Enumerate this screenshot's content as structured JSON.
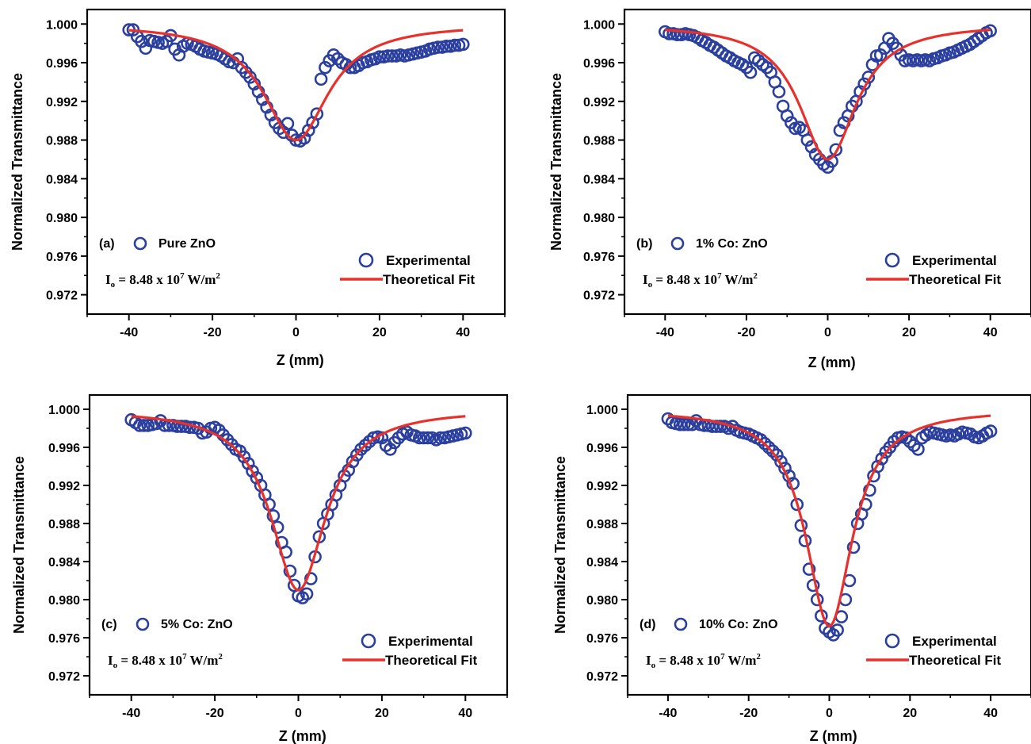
{
  "chart_data": [
    {
      "type": "scatter",
      "panel_label": "(a)",
      "sample_label": "Pure ZnO",
      "intensity": {
        "prefix": "I",
        "sub": "o",
        "main": " = 8.48 x 10",
        "exp": "7",
        "unit": " W/m",
        "unit_exp": "2"
      },
      "xlabel": "Z (mm)",
      "ylabel": "Normalized Transmittance",
      "xlim": [
        -50,
        50
      ],
      "ylim": [
        0.97,
        1.0015
      ],
      "xticks": [
        "-40",
        "-20",
        "0",
        "20",
        "40"
      ],
      "yticks": [
        "0.972",
        "0.976",
        "0.980",
        "0.984",
        "0.988",
        "0.992",
        "0.996",
        "1.000"
      ],
      "legend": {
        "position": "bottom-right",
        "experimental": "Experimental",
        "theoretical": "Theoretical Fit"
      },
      "series": [
        {
          "name": "Experimental",
          "color": "#2b3f9e",
          "x": [
            -40,
            -39,
            -38,
            -37,
            -36,
            -35,
            -34,
            -33,
            -32,
            -31,
            -30,
            -29,
            -28,
            -27,
            -26,
            -25,
            -24,
            -23,
            -22,
            -21,
            -20,
            -19,
            -18,
            -17,
            -16,
            -15,
            -14,
            -13,
            -12,
            -11,
            -10,
            -9,
            -8,
            -7,
            -6,
            -5,
            -4,
            -3,
            -2,
            -1,
            0,
            1,
            2,
            3,
            4,
            5,
            6,
            7,
            8,
            9,
            10,
            11,
            12,
            13,
            14,
            15,
            16,
            17,
            18,
            19,
            20,
            21,
            22,
            23,
            24,
            25,
            26,
            27,
            28,
            29,
            30,
            31,
            32,
            33,
            34,
            35,
            36,
            37,
            38,
            39,
            40
          ],
          "y": [
            0.9994,
            0.9994,
            0.9987,
            0.9982,
            0.9975,
            0.9983,
            0.9982,
            0.9981,
            0.998,
            0.9982,
            0.9988,
            0.9974,
            0.9968,
            0.9977,
            0.998,
            0.9979,
            0.9977,
            0.9974,
            0.9972,
            0.9971,
            0.997,
            0.9969,
            0.9967,
            0.9964,
            0.9961,
            0.996,
            0.9964,
            0.9955,
            0.995,
            0.9945,
            0.9938,
            0.993,
            0.9922,
            0.9914,
            0.9906,
            0.9898,
            0.9892,
            0.9888,
            0.9897,
            0.9885,
            0.988,
            0.9879,
            0.9882,
            0.989,
            0.9898,
            0.9907,
            0.9943,
            0.9955,
            0.9962,
            0.9968,
            0.9964,
            0.996,
            0.9958,
            0.9955,
            0.9955,
            0.9957,
            0.996,
            0.9961,
            0.9963,
            0.9964,
            0.9966,
            0.9966,
            0.9967,
            0.9967,
            0.9967,
            0.9968,
            0.9967,
            0.9968,
            0.9969,
            0.997,
            0.9971,
            0.9972,
            0.9974,
            0.9975,
            0.9976,
            0.9976,
            0.9977,
            0.9977,
            0.9978,
            0.9978,
            0.9979
          ]
        },
        {
          "name": "Theoretical Fit",
          "color": "#e8312b",
          "z0": 9.5,
          "depth": 0.012,
          "xmin": -40,
          "xmax": 40
        }
      ]
    },
    {
      "type": "scatter",
      "panel_label": "(b)",
      "sample_label": "1% Co: ZnO",
      "intensity": {
        "prefix": "I",
        "sub": "o",
        "main": " = 8.48 x 10",
        "exp": "7",
        "unit": " W/m",
        "unit_exp": "2"
      },
      "xlabel": "Z (mm)",
      "ylabel": "Normalized Transmittance",
      "xlim": [
        -50,
        50
      ],
      "ylim": [
        0.97,
        1.0015
      ],
      "xticks": [
        "-40",
        "-20",
        "0",
        "20",
        "40"
      ],
      "yticks": [
        "0.972",
        "0.976",
        "0.980",
        "0.984",
        "0.988",
        "0.992",
        "0.996",
        "1.000"
      ],
      "legend": {
        "position": "bottom-right",
        "experimental": "Experimental",
        "theoretical": "Theoretical Fit"
      },
      "series": [
        {
          "name": "Experimental",
          "color": "#2b3f9e",
          "x": [
            -40,
            -39,
            -38,
            -37,
            -36,
            -35,
            -34,
            -33,
            -32,
            -31,
            -30,
            -29,
            -28,
            -27,
            -26,
            -25,
            -24,
            -23,
            -22,
            -21,
            -20,
            -19,
            -18,
            -17,
            -16,
            -15,
            -14,
            -13,
            -12,
            -11,
            -10,
            -9,
            -8,
            -7,
            -6,
            -5,
            -4,
            -3,
            -2,
            -1,
            0,
            1,
            2,
            3,
            4,
            5,
            6,
            7,
            8,
            9,
            10,
            11,
            12,
            13,
            14,
            15,
            16,
            17,
            18,
            19,
            20,
            21,
            22,
            23,
            24,
            25,
            26,
            27,
            28,
            29,
            30,
            31,
            32,
            33,
            34,
            35,
            36,
            37,
            38,
            39,
            40
          ],
          "y": [
            0.9992,
            0.999,
            0.999,
            0.9989,
            0.9989,
            0.999,
            0.9989,
            0.9988,
            0.9986,
            0.9983,
            0.9981,
            0.9978,
            0.9976,
            0.9973,
            0.997,
            0.9967,
            0.9965,
            0.9962,
            0.996,
            0.9958,
            0.9955,
            0.995,
            0.9965,
            0.9962,
            0.9958,
            0.9955,
            0.995,
            0.994,
            0.993,
            0.9915,
            0.9905,
            0.9898,
            0.9892,
            0.9893,
            0.989,
            0.988,
            0.9873,
            0.9865,
            0.986,
            0.9855,
            0.9852,
            0.9858,
            0.987,
            0.989,
            0.9898,
            0.9905,
            0.9915,
            0.992,
            0.993,
            0.9938,
            0.9945,
            0.9958,
            0.9967,
            0.9968,
            0.9975,
            0.9985,
            0.998,
            0.9975,
            0.9968,
            0.9962,
            0.9963,
            0.9962,
            0.9963,
            0.9962,
            0.9963,
            0.9962,
            0.9964,
            0.9965,
            0.9967,
            0.9968,
            0.997,
            0.9971,
            0.9973,
            0.9975,
            0.9977,
            0.9979,
            0.9982,
            0.9985,
            0.9988,
            0.9991,
            0.9993
          ]
        },
        {
          "name": "Theoretical Fit",
          "color": "#e8312b",
          "z0": 8.5,
          "depth": 0.014,
          "xmin": -40,
          "xmax": 40
        }
      ]
    },
    {
      "type": "scatter",
      "panel_label": "(c)",
      "sample_label": "5% Co: ZnO",
      "intensity": {
        "prefix": "I",
        "sub": "o",
        "main": " = 8.48 x 10",
        "exp": "7",
        "unit": " W/m",
        "unit_exp": "2"
      },
      "xlabel": "Z (mm)",
      "ylabel": "Normalized Transmittance",
      "xlim": [
        -50,
        50
      ],
      "ylim": [
        0.97,
        1.0015
      ],
      "xticks": [
        "-40",
        "-20",
        "0",
        "20",
        "40"
      ],
      "yticks": [
        "0.972",
        "0.976",
        "0.980",
        "0.984",
        "0.988",
        "0.992",
        "0.996",
        "1.000"
      ],
      "legend": {
        "position": "bottom-right",
        "experimental": "Experimental",
        "theoretical": "Theoretical Fit"
      },
      "series": [
        {
          "name": "Experimental",
          "color": "#2b3f9e",
          "x": [
            -40,
            -39,
            -38,
            -37,
            -36,
            -35,
            -34,
            -33,
            -32,
            -31,
            -30,
            -29,
            -28,
            -27,
            -26,
            -25,
            -24,
            -23,
            -22,
            -21,
            -20,
            -19,
            -18,
            -17,
            -16,
            -15,
            -14,
            -13,
            -12,
            -11,
            -10,
            -9,
            -8,
            -7,
            -6,
            -5,
            -4,
            -3,
            -2,
            -1,
            0,
            1,
            2,
            3,
            4,
            5,
            6,
            7,
            8,
            9,
            10,
            11,
            12,
            13,
            14,
            15,
            16,
            17,
            18,
            19,
            20,
            21,
            22,
            23,
            24,
            25,
            26,
            27,
            28,
            29,
            30,
            31,
            32,
            33,
            34,
            35,
            36,
            37,
            38,
            39,
            40
          ],
          "y": [
            0.9989,
            0.9986,
            0.9983,
            0.9983,
            0.9983,
            0.9984,
            0.9985,
            0.9988,
            0.9983,
            0.9983,
            0.9983,
            0.9982,
            0.9982,
            0.9982,
            0.9981,
            0.9981,
            0.998,
            0.9975,
            0.9976,
            0.998,
            0.9981,
            0.9978,
            0.9973,
            0.9968,
            0.9963,
            0.9958,
            0.9956,
            0.995,
            0.9943,
            0.9935,
            0.9928,
            0.992,
            0.991,
            0.99,
            0.9888,
            0.9876,
            0.986,
            0.985,
            0.983,
            0.9815,
            0.9804,
            0.9802,
            0.9806,
            0.9822,
            0.9845,
            0.9866,
            0.988,
            0.989,
            0.99,
            0.991,
            0.992,
            0.993,
            0.9936,
            0.9945,
            0.9952,
            0.9958,
            0.9962,
            0.9966,
            0.997,
            0.9971,
            0.997,
            0.9962,
            0.9958,
            0.9965,
            0.997,
            0.9974,
            0.9976,
            0.9973,
            0.9972,
            0.997,
            0.997,
            0.997,
            0.997,
            0.9968,
            0.997,
            0.997,
            0.9971,
            0.9972,
            0.9973,
            0.9974,
            0.9975
          ]
        },
        {
          "name": "Theoretical Fit",
          "color": "#e8312b",
          "z0": 8.0,
          "depth": 0.019,
          "xmin": -40,
          "xmax": 40
        }
      ]
    },
    {
      "type": "scatter",
      "panel_label": "(d)",
      "sample_label": "10% Co: ZnO",
      "intensity": {
        "prefix": "I",
        "sub": "o",
        "main": " = 8.48 x 10",
        "exp": "7",
        "unit": " W/m",
        "unit_exp": "2"
      },
      "xlabel": "Z (mm)",
      "ylabel": "Normalized Transmittance",
      "xlim": [
        -50,
        50
      ],
      "ylim": [
        0.97,
        1.0015
      ],
      "xticks": [
        "-40",
        "-20",
        "0",
        "20",
        "40"
      ],
      "yticks": [
        "0.972",
        "0.976",
        "0.980",
        "0.984",
        "0.988",
        "0.992",
        "0.996",
        "1.000"
      ],
      "legend": {
        "position": "bottom-right",
        "experimental": "Experimental",
        "theoretical": "Theoretical Fit"
      },
      "series": [
        {
          "name": "Experimental",
          "color": "#2b3f9e",
          "x": [
            -40,
            -39,
            -38,
            -37,
            -36,
            -35,
            -34,
            -33,
            -32,
            -31,
            -30,
            -29,
            -28,
            -27,
            -26,
            -25,
            -24,
            -23,
            -22,
            -21,
            -20,
            -19,
            -18,
            -17,
            -16,
            -15,
            -14,
            -13,
            -12,
            -11,
            -10,
            -9,
            -8,
            -7,
            -6,
            -5,
            -4,
            -3,
            -2,
            -1,
            0,
            1,
            2,
            3,
            4,
            5,
            6,
            7,
            8,
            9,
            10,
            11,
            12,
            13,
            14,
            15,
            16,
            17,
            18,
            19,
            20,
            21,
            22,
            23,
            24,
            25,
            26,
            27,
            28,
            29,
            30,
            31,
            32,
            33,
            34,
            35,
            36,
            37,
            38,
            39,
            40
          ],
          "y": [
            0.999,
            0.9986,
            0.9985,
            0.9984,
            0.9984,
            0.9984,
            0.9984,
            0.9988,
            0.9984,
            0.9983,
            0.9983,
            0.9982,
            0.9982,
            0.9982,
            0.9982,
            0.998,
            0.9982,
            0.9978,
            0.9976,
            0.9975,
            0.9974,
            0.9972,
            0.997,
            0.9968,
            0.9964,
            0.996,
            0.9956,
            0.9952,
            0.9945,
            0.9938,
            0.993,
            0.9922,
            0.99,
            0.9878,
            0.9862,
            0.9832,
            0.9815,
            0.98,
            0.9783,
            0.977,
            0.9766,
            0.9763,
            0.9768,
            0.9782,
            0.98,
            0.982,
            0.9855,
            0.988,
            0.989,
            0.99,
            0.9915,
            0.993,
            0.994,
            0.9948,
            0.9955,
            0.996,
            0.9966,
            0.997,
            0.9971,
            0.997,
            0.9966,
            0.9962,
            0.9958,
            0.997,
            0.9973,
            0.9976,
            0.9975,
            0.9974,
            0.9973,
            0.9972,
            0.9973,
            0.9972,
            0.9974,
            0.9976,
            0.9975,
            0.9974,
            0.9971,
            0.997,
            0.9972,
            0.9975,
            0.9977
          ]
        },
        {
          "name": "Theoretical Fit",
          "color": "#e8312b",
          "z0": 7.0,
          "depth": 0.0228,
          "xmin": -40,
          "xmax": 40
        }
      ]
    }
  ]
}
